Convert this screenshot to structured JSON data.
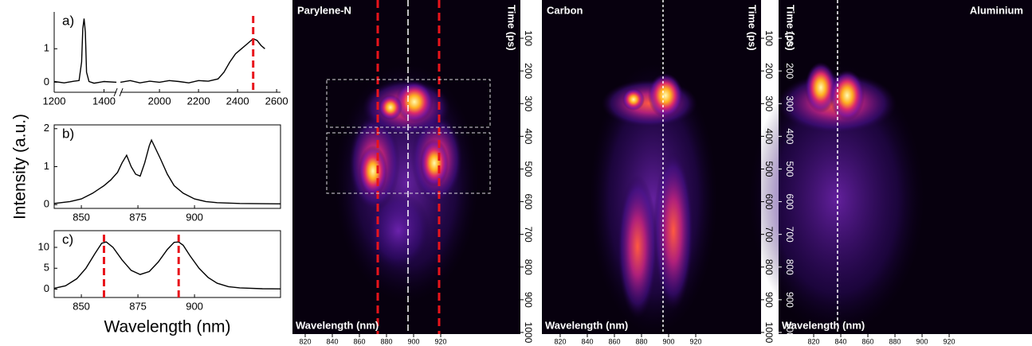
{
  "chart_data": [
    {
      "type": "line",
      "label": "a)",
      "color": "#000000",
      "x": [
        1200,
        1240,
        1280,
        1300,
        1310,
        1315,
        1320,
        1325,
        1330,
        1340,
        1360,
        1400,
        1450,
        1600,
        1800,
        1850,
        1900,
        1950,
        2000,
        2050,
        2100,
        2150,
        2200,
        2250,
        2300,
        2330,
        2360,
        2390,
        2420,
        2450,
        2480,
        2500,
        2520,
        2540
      ],
      "values": [
        0.02,
        -0.02,
        0.03,
        0.05,
        0.6,
        1.6,
        1.9,
        1.5,
        0.3,
        0.02,
        -0.03,
        0.02,
        0.0,
        null,
        0.0,
        0.05,
        -0.02,
        0.03,
        0.0,
        0.05,
        0.02,
        -0.02,
        0.05,
        0.03,
        0.1,
        0.3,
        0.6,
        0.85,
        1.0,
        1.15,
        1.3,
        1.25,
        1.1,
        1.0
      ],
      "xlim": [
        1200,
        2620
      ],
      "axis_break": [
        1450,
        1800
      ],
      "xticks": [
        1200,
        1400,
        2000,
        2200,
        2400,
        2600
      ],
      "ylim": [
        -0.3,
        2.1
      ],
      "yticks": [
        0,
        1
      ],
      "markers": [
        2480
      ],
      "marker_color": "#e8141b"
    },
    {
      "type": "line",
      "label": "b)",
      "color": "#000000",
      "ylabel": "Intensity (a.u.)",
      "x": [
        838,
        845,
        850,
        855,
        860,
        863,
        866,
        868,
        870,
        872,
        874,
        876,
        878,
        880,
        881,
        883,
        885,
        888,
        891,
        895,
        900,
        905,
        910,
        920,
        938
      ],
      "values": [
        0.03,
        0.08,
        0.15,
        0.3,
        0.5,
        0.65,
        0.85,
        1.1,
        1.3,
        1.0,
        0.8,
        0.75,
        1.1,
        1.55,
        1.7,
        1.45,
        1.2,
        0.8,
        0.5,
        0.3,
        0.15,
        0.08,
        0.05,
        0.03,
        0.02
      ],
      "xlim": [
        838,
        938
      ],
      "xticks": [
        850,
        875,
        900
      ],
      "ylim": [
        -0.1,
        2.1
      ],
      "yticks": [
        0,
        1,
        2
      ]
    },
    {
      "type": "line",
      "label": "c)",
      "color": "#000000",
      "xlabel": "Wavelength (nm)",
      "x": [
        838,
        843,
        848,
        852,
        856,
        859,
        861,
        864,
        868,
        872,
        876,
        880,
        884,
        888,
        891,
        893,
        895,
        898,
        902,
        906,
        910,
        915,
        920,
        930,
        938
      ],
      "values": [
        0.2,
        0.8,
        2.5,
        5,
        8.5,
        11,
        11.3,
        10,
        7,
        4.5,
        3.5,
        4.2,
        6.5,
        9.5,
        11.2,
        11.3,
        10.5,
        8,
        5,
        2.8,
        1.4,
        0.6,
        0.3,
        0.1,
        0.05
      ],
      "xlim": [
        838,
        938
      ],
      "xticks": [
        850,
        875,
        900
      ],
      "ylim": [
        -2,
        14
      ],
      "yticks": [
        0,
        5,
        10
      ],
      "markers": [
        860,
        893
      ],
      "marker_color": "#e8141b"
    },
    {
      "type": "streak",
      "title": "Parylene-N",
      "xlabel": "Wavelength (nm)",
      "ylabel": "Time (ps)",
      "xlim": [
        810.6,
        978.8
      ],
      "xticks": [
        820,
        840,
        860,
        880,
        900,
        920
      ],
      "ylim": [
        -17,
        1005
      ],
      "yticks": [
        100,
        200,
        300,
        400,
        500,
        600,
        700,
        800,
        900,
        1000
      ],
      "y_inverted": true
    },
    {
      "type": "streak",
      "title": "Carbon",
      "xlabel": "Wavelength (nm)",
      "ylabel": "Time (ps)",
      "xlim": [
        806.5,
        968.2
      ],
      "xticks": [
        820,
        840,
        860,
        880,
        900,
        920
      ],
      "ylim": [
        -17,
        1005
      ],
      "yticks": [
        100,
        200,
        300,
        400,
        500,
        600,
        700,
        800,
        900,
        1000
      ],
      "y_inverted": true
    },
    {
      "type": "streak",
      "title": "Aluminium",
      "xlabel": "Wavelength (nm)",
      "ylabel": "Time (ps)",
      "xlim": [
        794.1,
        978.2
      ],
      "xticks": [
        820,
        840,
        860,
        880,
        900,
        920
      ],
      "ylim": [
        -17,
        1005
      ],
      "yticks": [
        100,
        200,
        300,
        400,
        500,
        600,
        700,
        800,
        900,
        1000
      ],
      "y_inverted": true
    }
  ]
}
